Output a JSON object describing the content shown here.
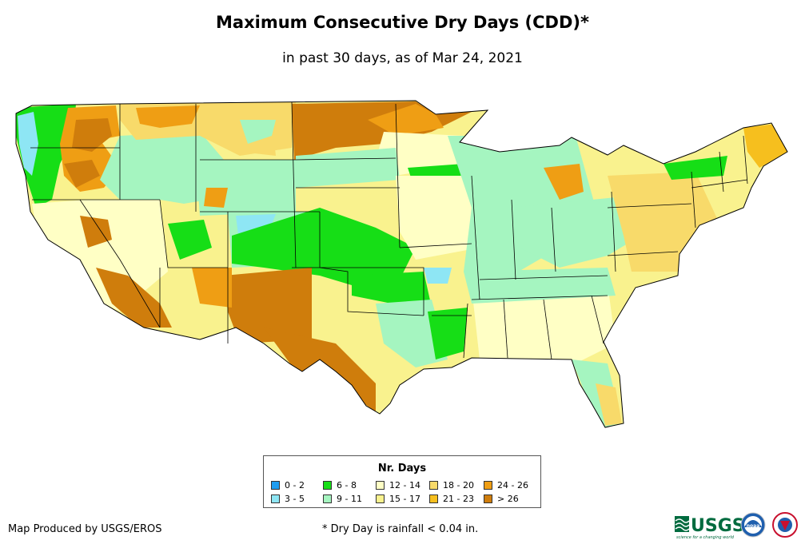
{
  "title": "Maximum Consecutive Dry Days (CDD)*",
  "subtitle": "in past 30 days, as of Mar 24, 2021",
  "legend": {
    "title": "Nr. Days",
    "items": [
      {
        "label": "0 - 2",
        "color": "#1e9df0"
      },
      {
        "label": "3 - 5",
        "color": "#8ee6f4"
      },
      {
        "label": "6 - 8",
        "color": "#16de16"
      },
      {
        "label": "9 - 11",
        "color": "#a5f5c0"
      },
      {
        "label": "12 - 14",
        "color": "#ffffc5"
      },
      {
        "label": "15 - 17",
        "color": "#f9f28e"
      },
      {
        "label": "18 - 20",
        "color": "#f8da6a"
      },
      {
        "label": "21 - 23",
        "color": "#f6bf1e"
      },
      {
        "label": "24 - 26",
        "color": "#ef9e14"
      },
      {
        "label": "> 26",
        "color": "#cf7d0c"
      }
    ]
  },
  "credit": "Map Produced by USGS/EROS",
  "footnote": "* Dry Day is rainfall < 0.04 in.",
  "logos": {
    "usgs_text": "USGS",
    "usgs_tagline": "science for a changing world",
    "noaa_text": "noaa"
  }
}
